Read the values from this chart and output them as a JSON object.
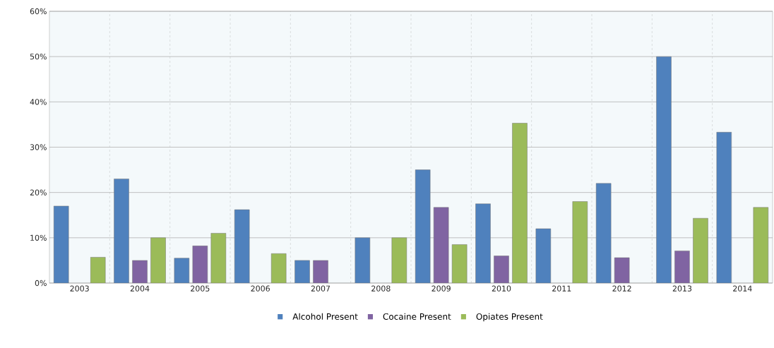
{
  "chart_data": {
    "type": "bar",
    "categories": [
      "2003",
      "2004",
      "2005",
      "2006",
      "2007",
      "2008",
      "2009",
      "2010",
      "2011",
      "2012",
      "2013",
      "2014"
    ],
    "series": [
      {
        "name": "Alcohol Present",
        "color": "#4f81bd",
        "values": [
          17,
          23,
          5.5,
          16.2,
          5,
          10,
          25,
          17.5,
          12,
          22,
          50,
          33.3
        ]
      },
      {
        "name": "Cocaine Present",
        "color": "#8064a2",
        "values": [
          null,
          5,
          8.2,
          null,
          5,
          null,
          16.7,
          6,
          null,
          5.6,
          7.1,
          null
        ]
      },
      {
        "name": "Opiates Present",
        "color": "#9bbb59",
        "values": [
          5.7,
          10,
          11,
          6.5,
          null,
          10,
          8.5,
          35.3,
          18,
          null,
          14.3,
          16.7
        ]
      }
    ],
    "ylim": [
      0,
      60
    ],
    "yticks": [
      {
        "value": 0,
        "label": "0%"
      },
      {
        "value": 10,
        "label": "10%"
      },
      {
        "value": 20,
        "label": "20%"
      },
      {
        "value": 30,
        "label": "30%"
      },
      {
        "value": 40,
        "label": "40%"
      },
      {
        "value": 50,
        "label": "50%"
      },
      {
        "value": 60,
        "label": "60%"
      }
    ],
    "grid": true,
    "legend": "bottom"
  }
}
